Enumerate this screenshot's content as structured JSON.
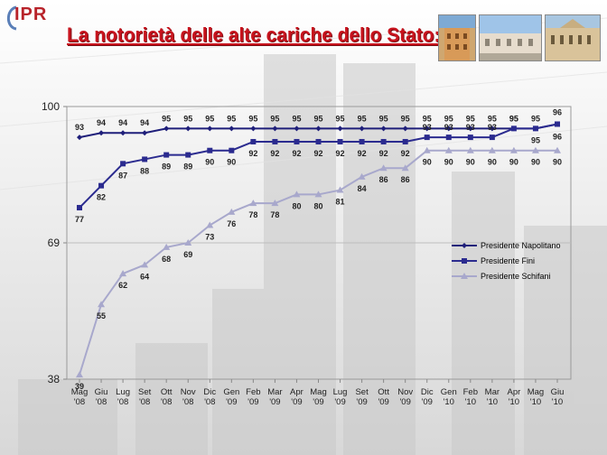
{
  "header": {
    "logo_text": "IPR",
    "title": "La notorietà delle alte cariche dello Stato:",
    "photos": [
      "palazzo-icon",
      "palazzo-icon",
      "palazzo-icon"
    ]
  },
  "colors": {
    "napolitano": "#1f1f7a",
    "fini": "#2b2b8f",
    "schifani": "#a8a8cc",
    "title": "#c8141e",
    "plot_border": "#9a9a9a"
  },
  "chart_data": {
    "type": "line",
    "title": "",
    "xlabel": "",
    "ylabel": "",
    "ylim": [
      38,
      100
    ],
    "yticks": [
      "38",
      "69",
      "100"
    ],
    "grid": false,
    "legend_position": "right",
    "categories": [
      [
        "Mag",
        "'08"
      ],
      [
        "Giu",
        "'08"
      ],
      [
        "Lug",
        "'08"
      ],
      [
        "Set",
        "'08"
      ],
      [
        "Ott",
        "'08"
      ],
      [
        "Nov",
        "'08"
      ],
      [
        "Dic",
        "'08"
      ],
      [
        "Gen",
        "'09"
      ],
      [
        "Feb",
        "'09"
      ],
      [
        "Mar",
        "'09"
      ],
      [
        "Apr",
        "'09"
      ],
      [
        "Mag",
        "'09"
      ],
      [
        "Lug",
        "'09"
      ],
      [
        "Set",
        "'09"
      ],
      [
        "Ott",
        "'09"
      ],
      [
        "Nov",
        "'09"
      ],
      [
        "Dic",
        "'09"
      ],
      [
        "Gen",
        "'10"
      ],
      [
        "Feb",
        "'10"
      ],
      [
        "Mar",
        "'10"
      ],
      [
        "Apr",
        "'10"
      ],
      [
        "Mag",
        "'10"
      ],
      [
        "Giu",
        "'10"
      ]
    ],
    "series": [
      {
        "name": "Presidente Napolitano",
        "marker": "diamond",
        "values": [
          93,
          94,
          94,
          94,
          95,
          95,
          95,
          95,
          95,
          95,
          95,
          95,
          95,
          95,
          95,
          95,
          95,
          95,
          95,
          95,
          95,
          95,
          96
        ]
      },
      {
        "name": "Presidente Fini",
        "marker": "square",
        "values": [
          77,
          82,
          87,
          88,
          89,
          89,
          90,
          90,
          92,
          92,
          92,
          92,
          92,
          92,
          92,
          92,
          93,
          93,
          93,
          93,
          95,
          95,
          96
        ]
      },
      {
        "name": "Presidente Schifani",
        "marker": "triangle",
        "values": [
          39,
          55,
          62,
          64,
          68,
          69,
          73,
          76,
          78,
          78,
          80,
          80,
          81,
          84,
          86,
          86,
          90,
          90,
          90,
          90,
          90,
          90,
          90
        ]
      }
    ]
  }
}
